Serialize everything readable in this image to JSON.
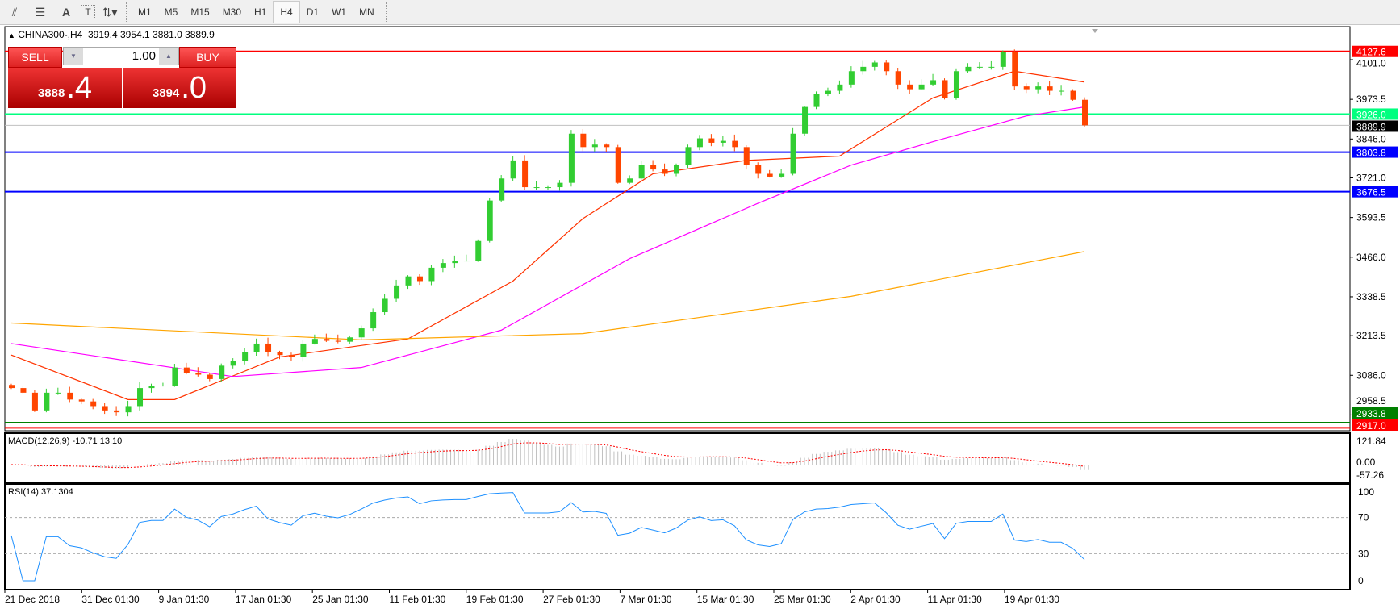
{
  "toolbar": {
    "icons": [
      "chart-objects-icon",
      "fibonacci-icon",
      "text-icon",
      "text-label-icon",
      "arrows-icon"
    ],
    "text_icon": "A",
    "label_icon": "T",
    "timeframes": [
      "M1",
      "M5",
      "M15",
      "M30",
      "H1",
      "H4",
      "D1",
      "W1",
      "MN"
    ],
    "active_timeframe": "H4"
  },
  "chart": {
    "symbol": "CHINA300-,H4",
    "ohlc": "3919.4 3954.1 3881.0 3889.9"
  },
  "trade": {
    "sell_label": "SELL",
    "buy_label": "BUY",
    "volume": "1.00",
    "sell_main": "3888",
    "sell_frac": ".4",
    "buy_main": "3894",
    "buy_frac": ".0",
    "color": "#dd2222"
  },
  "price_axis": {
    "ticks": [
      "4101.0",
      "3973.5",
      "3846.0",
      "3721.0",
      "3593.5",
      "3466.0",
      "3338.5",
      "3213.5",
      "3086.0",
      "2958.5"
    ]
  },
  "levels": [
    {
      "value": 4127.6,
      "label": "4127.6",
      "color": "#ff0000",
      "text": "#ffffff"
    },
    {
      "value": 3926.0,
      "label": "3926.0",
      "color": "#00ff7f",
      "text": "#ffffff"
    },
    {
      "value": 3889.9,
      "label": "3889.9",
      "color": "#c0c0c0",
      "box": "#000000",
      "text": "#ffffff"
    },
    {
      "value": 3803.8,
      "label": "3803.8",
      "color": "#0000ff",
      "text": "#ffffff"
    },
    {
      "value": 3676.5,
      "label": "3676.5",
      "color": "#0000ff",
      "text": "#ffffff"
    },
    {
      "value": 2933.8,
      "label": "2933.8",
      "color": "#008000",
      "text": "#ffffff"
    },
    {
      "value": 2917.0,
      "label": "2917.0",
      "color": "#ff0000",
      "text": "#ffffff"
    }
  ],
  "chart_data": {
    "type": "candlestick",
    "bull_color": "#32cd32",
    "bear_color": "#ff4500",
    "closes": [
      3045,
      3030,
      2973,
      3030,
      3030,
      3008,
      3002,
      2987,
      2973,
      2967,
      2987,
      3045,
      3053,
      3053,
      3111,
      3094,
      3088,
      3074,
      3117,
      3131,
      3160,
      3188,
      3160,
      3151,
      3145,
      3188,
      3203,
      3197,
      3194,
      3208,
      3237,
      3289,
      3332,
      3375,
      3404,
      3389,
      3432,
      3447,
      3455,
      3455,
      3518,
      3648,
      3719,
      3777,
      3691,
      3691,
      3691,
      3705,
      3863,
      3820,
      3828,
      3820,
      3705,
      3719,
      3762,
      3748,
      3734,
      3762,
      3820,
      3848,
      3834,
      3840,
      3820,
      3762,
      3734,
      3725,
      3734,
      3863,
      3949,
      3992,
      4001,
      4021,
      4064,
      4078,
      4092,
      4064,
      4021,
      4006,
      4021,
      4035,
      3978,
      4064,
      4078,
      4078,
      4078,
      4127,
      4015,
      4006,
      4015,
      4001,
      4001,
      3972,
      3889.9
    ],
    "moving_averages": [
      {
        "color": "#ff3300",
        "points": [
          [
            0,
            3151
          ],
          [
            10,
            3008
          ],
          [
            14,
            3008
          ],
          [
            23,
            3145
          ],
          [
            34,
            3203
          ],
          [
            43,
            3389
          ],
          [
            49,
            3590
          ],
          [
            55,
            3734
          ],
          [
            63,
            3777
          ],
          [
            71,
            3791
          ],
          [
            79,
            3978
          ],
          [
            86,
            4064
          ],
          [
            92,
            4029
          ]
        ]
      },
      {
        "color": "#ff00ff",
        "points": [
          [
            0,
            3188
          ],
          [
            19,
            3082
          ],
          [
            30,
            3111
          ],
          [
            42,
            3231
          ],
          [
            53,
            3461
          ],
          [
            64,
            3639
          ],
          [
            72,
            3762
          ],
          [
            80,
            3848
          ],
          [
            87,
            3920
          ],
          [
            92,
            3949
          ]
        ]
      },
      {
        "color": "#ffa500",
        "points": [
          [
            0,
            3254
          ],
          [
            30,
            3200
          ],
          [
            49,
            3220
          ],
          [
            72,
            3340
          ],
          [
            92,
            3484
          ]
        ]
      }
    ]
  },
  "macd": {
    "label": "MACD(12,26,9) -10.71 13.10",
    "ticks": [
      "121.84",
      "0.00",
      "-57.26"
    ],
    "max": 121.84,
    "min": -57.26
  },
  "rsi": {
    "label": "RSI(14) 37.1304",
    "ticks": [
      "100",
      "70",
      "30",
      "0"
    ],
    "levels": [
      70,
      30
    ],
    "color": "#1e90ff"
  },
  "x_axis": {
    "labels": [
      "21 Dec 2018",
      "31 Dec 01:30",
      "9 Jan 01:30",
      "17 Jan 01:30",
      "25 Jan 01:30",
      "11 Feb 01:30",
      "19 Feb 01:30",
      "27 Feb 01:30",
      "7 Mar 01:30",
      "15 Mar 01:30",
      "25 Mar 01:30",
      "2 Apr 01:30",
      "11 Apr 01:30",
      "19 Apr 01:30"
    ]
  }
}
